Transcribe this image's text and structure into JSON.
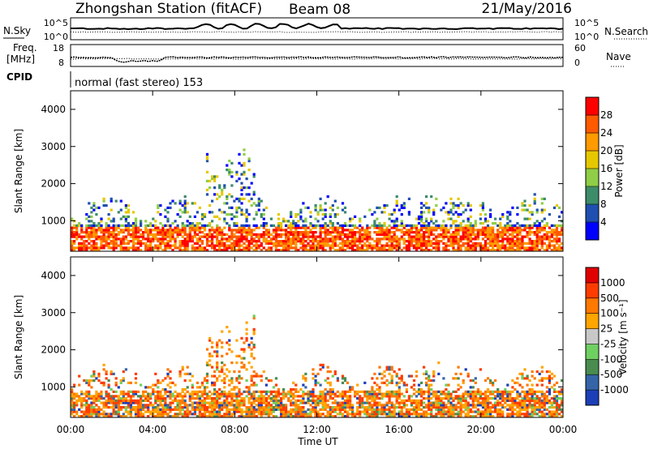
{
  "header": {
    "station": "Zhongshan Station (fitACF)",
    "beam": "Beam 08",
    "date": "21/May/2016"
  },
  "noise_panel": {
    "left_label": "N.Sky",
    "left_ticks": [
      "10^5",
      "10^0"
    ],
    "right_label": "N.Search",
    "right_ticks": [
      "10^5",
      "10^0"
    ]
  },
  "freq_panel": {
    "left_label_1": "Freq.",
    "left_label_2": "[MHz]",
    "left_ticks": [
      "18",
      "8"
    ],
    "right_label": "Nave",
    "right_ticks": [
      "60",
      "0"
    ]
  },
  "cpid": {
    "label": "CPID",
    "text": "normal (fast stereo) 153"
  },
  "colors": {
    "power": [
      "#0000ff",
      "#1f4fb0",
      "#3d8c6a",
      "#8fce46",
      "#e6c800",
      "#ff9a00",
      "#ff5a00",
      "#ff0000"
    ],
    "velocity": [
      "#1c3fb8",
      "#3565a8",
      "#4a8c50",
      "#6ed060",
      "#c8c8c8",
      "#ffa500",
      "#ff7800",
      "#ff3c00",
      "#e00000"
    ]
  },
  "chart_data": [
    {
      "type": "heatmap",
      "name": "power-panel",
      "ylabel": "Slant Range [km]",
      "yticks": [
        "4000",
        "3000",
        "2000",
        "1000"
      ],
      "ylim": [
        180,
        4500
      ],
      "xlim": [
        "00:00",
        "24:00"
      ],
      "colorbar": {
        "label": "Power [dB]",
        "ticks": [
          "28",
          "24",
          "20",
          "16",
          "12",
          "8",
          "4"
        ],
        "range": [
          0,
          32
        ]
      }
    },
    {
      "type": "heatmap",
      "name": "velocity-panel",
      "ylabel": "Slant Range [km]",
      "yticks": [
        "4000",
        "3000",
        "2000",
        "1000"
      ],
      "ylim": [
        180,
        4500
      ],
      "xlabel": "Time UT",
      "xticks": [
        "00:00",
        "04:00",
        "08:00",
        "12:00",
        "16:00",
        "20:00",
        "00:00"
      ],
      "colorbar": {
        "label": "Velocity [m s⁻¹]",
        "ticks": [
          "1000",
          "500",
          "100",
          "25",
          "-25",
          "-100",
          "-500",
          "-1000"
        ]
      }
    }
  ]
}
